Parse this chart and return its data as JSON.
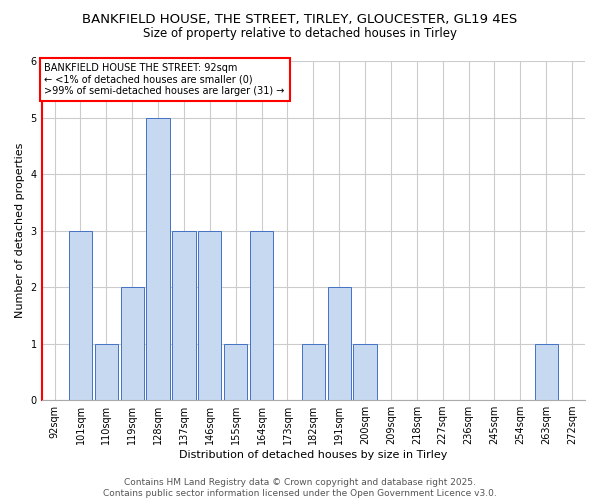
{
  "title1": "BANKFIELD HOUSE, THE STREET, TIRLEY, GLOUCESTER, GL19 4ES",
  "title2": "Size of property relative to detached houses in Tirley",
  "categories": [
    "92sqm",
    "101sqm",
    "110sqm",
    "119sqm",
    "128sqm",
    "137sqm",
    "146sqm",
    "155sqm",
    "164sqm",
    "173sqm",
    "182sqm",
    "191sqm",
    "200sqm",
    "209sqm",
    "218sqm",
    "227sqm",
    "236sqm",
    "245sqm",
    "254sqm",
    "263sqm",
    "272sqm"
  ],
  "values": [
    0,
    3,
    1,
    2,
    5,
    3,
    3,
    1,
    3,
    0,
    1,
    2,
    1,
    0,
    0,
    0,
    0,
    0,
    0,
    1,
    0
  ],
  "bar_color": "#c6d9f0",
  "bar_edge_color": "#4472c4",
  "highlight_index": 0,
  "highlight_color": "#ff0000",
  "ylabel": "Number of detached properties",
  "xlabel": "Distribution of detached houses by size in Tirley",
  "ylim": [
    0,
    6
  ],
  "yticks": [
    0,
    1,
    2,
    3,
    4,
    5,
    6
  ],
  "annotation_title": "BANKFIELD HOUSE THE STREET: 92sqm",
  "annotation_line1": "← <1% of detached houses are smaller (0)",
  "annotation_line2": ">99% of semi-detached houses are larger (31) →",
  "footer1": "Contains HM Land Registry data © Crown copyright and database right 2025.",
  "footer2": "Contains public sector information licensed under the Open Government Licence v3.0.",
  "bg_color": "#ffffff",
  "grid_color": "#cccccc",
  "title_fontsize": 9.5,
  "subtitle_fontsize": 8.5,
  "axis_label_fontsize": 8,
  "tick_fontsize": 7,
  "annotation_fontsize": 7,
  "footer_fontsize": 6.5
}
